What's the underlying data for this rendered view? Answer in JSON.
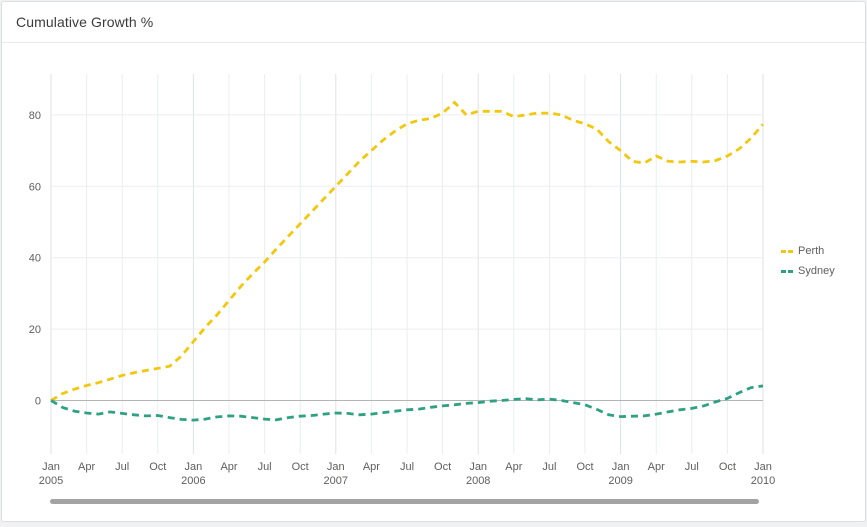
{
  "header": {
    "title": "Cumulative Growth %"
  },
  "chart_data": {
    "type": "line",
    "title": "Cumulative Growth %",
    "x_unit": "month",
    "x_start": "2005-01",
    "x_end": "2010-01",
    "x_ticks": [
      {
        "m": "Jan",
        "y": "2005"
      },
      {
        "m": "Apr"
      },
      {
        "m": "Jul"
      },
      {
        "m": "Oct"
      },
      {
        "m": "Jan",
        "y": "2006"
      },
      {
        "m": "Apr"
      },
      {
        "m": "Jul"
      },
      {
        "m": "Oct"
      },
      {
        "m": "Jan",
        "y": "2007"
      },
      {
        "m": "Apr"
      },
      {
        "m": "Jul"
      },
      {
        "m": "Oct"
      },
      {
        "m": "Jan",
        "y": "2008"
      },
      {
        "m": "Apr"
      },
      {
        "m": "Jul"
      },
      {
        "m": "Oct"
      },
      {
        "m": "Jan",
        "y": "2009"
      },
      {
        "m": "Apr"
      },
      {
        "m": "Jul"
      },
      {
        "m": "Oct"
      },
      {
        "m": "Jan",
        "y": "2010"
      }
    ],
    "y_ticks": [
      0,
      20,
      40,
      60,
      80
    ],
    "ylim": [
      -15,
      91
    ],
    "grid": true,
    "line_style": "dashed",
    "legend_position": "right",
    "series": [
      {
        "name": "Perth",
        "color": "#F2C80F",
        "values": [
          0,
          2,
          3.2,
          4.2,
          5,
          6,
          7,
          7.8,
          8.4,
          9,
          9.6,
          12.5,
          16.5,
          20.5,
          24,
          28,
          32,
          35.5,
          38.8,
          42.5,
          46,
          49.5,
          53,
          56.5,
          60,
          63.5,
          67,
          70,
          73,
          75.5,
          77.5,
          78.5,
          79,
          80.5,
          83.5,
          80,
          81,
          81,
          81,
          79.5,
          80,
          80.5,
          80.5,
          80,
          78.5,
          77.5,
          76,
          72.5,
          70,
          67,
          66.5,
          68.5,
          67,
          66.8,
          67,
          66.8,
          67.2,
          68.5,
          70.5,
          73.5,
          77.4
        ]
      },
      {
        "name": "Sydney",
        "color": "#2EA185",
        "values": [
          0,
          -2,
          -3,
          -3.5,
          -3.8,
          -3.2,
          -3.6,
          -4,
          -4.3,
          -4.2,
          -4.8,
          -5.3,
          -5.5,
          -5.2,
          -4.6,
          -4.3,
          -4.4,
          -4.8,
          -5.2,
          -5.4,
          -4.8,
          -4.4,
          -4.2,
          -3.8,
          -3.5,
          -3.6,
          -4,
          -3.8,
          -3.4,
          -3,
          -2.6,
          -2.4,
          -1.9,
          -1.5,
          -1.2,
          -0.8,
          -0.6,
          -0.2,
          0,
          0.3,
          0.5,
          0.2,
          0.4,
          0,
          -0.6,
          -1.2,
          -2.5,
          -4,
          -4.5,
          -4.4,
          -4.3,
          -3.8,
          -3.2,
          -2.6,
          -2.2,
          -1.5,
          -0.4,
          0.6,
          2.2,
          3.6,
          4.1
        ]
      }
    ],
    "colors": {
      "gridline": "#ebedef",
      "year_gridline": "#e0e2e5",
      "zero_line": "#b3b4b6",
      "tick_text": "#605e5c"
    }
  }
}
